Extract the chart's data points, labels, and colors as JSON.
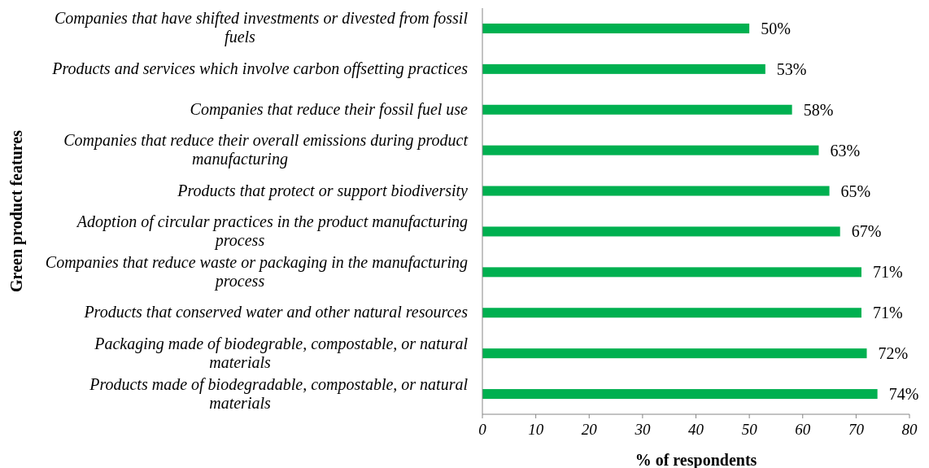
{
  "chart_data": {
    "type": "bar",
    "orientation": "horizontal",
    "xlabel": "% of respondents",
    "ylabel": "Green product features",
    "categories": [
      "Companies that have shifted investments or divested from fossil fuels",
      "Products and services which involve carbon offsetting practices",
      "Companies that reduce their fossil fuel use",
      "Companies that reduce their overall emissions during product manufacturing",
      "Products that protect or support biodiversity",
      "Adoption of circular practices in the product manufacturing process",
      "Companies that reduce waste or packaging in the manufacturing process",
      "Products that conserved water and other natural resources",
      "Packaging made of biodegrable, compostable, or natural materials",
      "Products made of biodegradable, compostable, or natural materials"
    ],
    "values": [
      50,
      53,
      58,
      63,
      65,
      67,
      71,
      71,
      72,
      74
    ],
    "value_labels": [
      "50%",
      "53%",
      "58%",
      "63%",
      "65%",
      "67%",
      "71%",
      "71%",
      "72%",
      "74%"
    ],
    "color": "#00b050",
    "xlim": [
      0,
      80
    ],
    "xticks": [
      0,
      10,
      20,
      30,
      40,
      50,
      60,
      70,
      80
    ],
    "grid": false
  }
}
